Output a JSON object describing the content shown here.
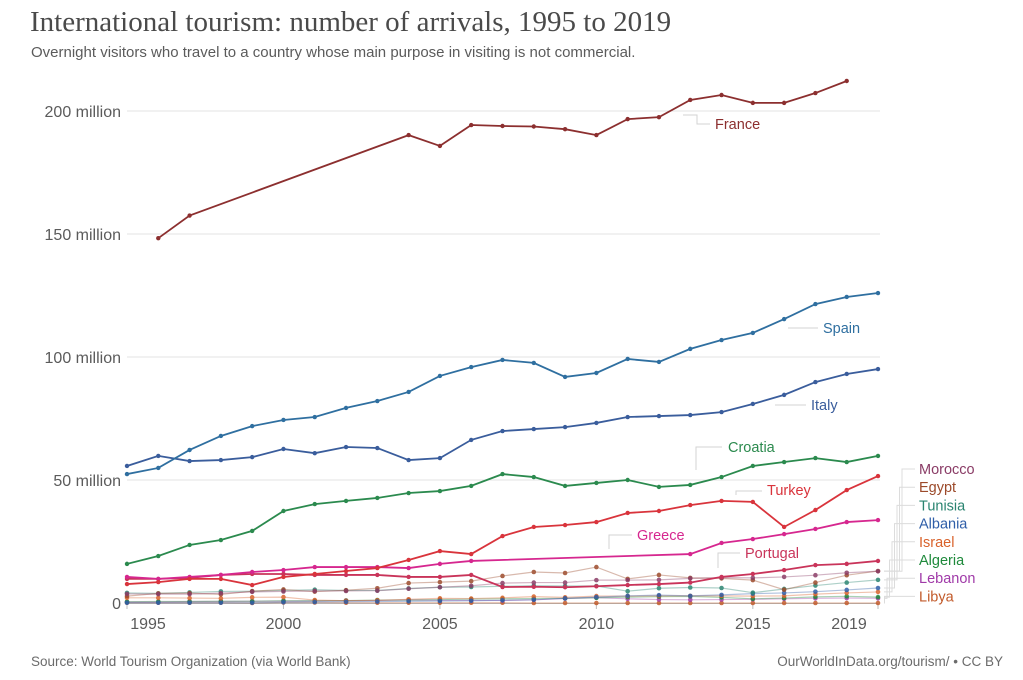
{
  "header": {
    "title": "International tourism: number of arrivals, 1995 to 2019",
    "subtitle": "Overnight visitors who travel to a country whose main purpose in visiting is not commercial."
  },
  "footer": {
    "source": "Source: World Tourism Organization (via World Bank)",
    "credit_link": "OurWorldInData.org/tourism/",
    "credit_separator": " • ",
    "license": "CC BY"
  },
  "chart_data": {
    "type": "line",
    "title": "International tourism: number of arrivals, 1995 to 2019",
    "subtitle": "Overnight visitors who travel to a country whose main purpose in visiting is not commercial.",
    "xlabel": "",
    "ylabel": "",
    "unit": "million arrivals",
    "xlim": [
      1995,
      2019
    ],
    "ylim": [
      0,
      215
    ],
    "x_ticks": [
      1995,
      2000,
      2005,
      2010,
      2015,
      2019
    ],
    "x_tick_labels": [
      "1995",
      "2000",
      "2005",
      "2010",
      "2015",
      "2019"
    ],
    "y_ticks": [
      0,
      50,
      100,
      150,
      200
    ],
    "y_tick_labels": [
      "0",
      "50 million",
      "100 million",
      "150 million",
      "200 million"
    ],
    "grid": "horizontal",
    "legend": "inline-labels-right",
    "x": [
      1995,
      1996,
      1997,
      1998,
      1999,
      2000,
      2001,
      2002,
      2003,
      2004,
      2005,
      2006,
      2007,
      2008,
      2009,
      2010,
      2011,
      2012,
      2013,
      2014,
      2015,
      2016,
      2017,
      2018,
      2019
    ],
    "series": [
      {
        "name": "France",
        "color": "#8c2f2f",
        "label": "France",
        "values": [
          null,
          148.3,
          157.5,
          null,
          null,
          null,
          null,
          null,
          null,
          190.2,
          185.8,
          194.3,
          193.9,
          193.7,
          192.6,
          190.2,
          196.7,
          197.5,
          204.5,
          206.5,
          203.3,
          203.3,
          207.3,
          212.2,
          null
        ]
      },
      {
        "name": "Spain",
        "color": "#2f6fa0",
        "label": "Spain",
        "values": [
          52.4,
          54.9,
          62.2,
          67.9,
          71.9,
          74.4,
          75.6,
          79.3,
          82.1,
          85.8,
          92.3,
          95.9,
          98.8,
          97.6,
          91.9,
          93.5,
          99.2,
          98.0,
          103.3,
          106.9,
          109.8,
          115.4,
          121.5,
          124.4,
          126.0
        ]
      },
      {
        "name": "Italy",
        "color": "#3a5d9c",
        "label": "Italy",
        "values": [
          55.7,
          59.8,
          57.7,
          58.1,
          59.3,
          62.6,
          60.9,
          63.4,
          63.0,
          58.1,
          58.9,
          66.3,
          69.9,
          70.7,
          71.5,
          73.2,
          75.6,
          76.0,
          76.4,
          77.6,
          80.9,
          84.6,
          89.8,
          93.1,
          95.1
        ]
      },
      {
        "name": "Croatia",
        "color": "#2b8a4e",
        "label": "Croatia",
        "values": [
          15.9,
          19.1,
          23.6,
          25.6,
          29.3,
          37.4,
          40.2,
          41.5,
          42.7,
          44.7,
          45.5,
          47.6,
          52.4,
          51.2,
          47.6,
          48.8,
          50.0,
          47.2,
          48.0,
          51.2,
          55.7,
          57.3,
          58.9,
          57.3,
          59.8
        ]
      },
      {
        "name": "Turkey",
        "color": "#d9343c",
        "label": "Turkey",
        "values": [
          7.7,
          8.5,
          9.8,
          9.8,
          7.3,
          10.6,
          11.8,
          13.0,
          14.2,
          17.5,
          21.1,
          19.9,
          27.2,
          30.9,
          31.7,
          32.9,
          36.6,
          37.4,
          39.8,
          41.5,
          41.1,
          30.9,
          37.8,
          45.9,
          51.6
        ]
      },
      {
        "name": "Greece",
        "color": "#d6278f",
        "label": "Greece",
        "values": [
          10.6,
          9.8,
          10.6,
          11.4,
          12.6,
          13.4,
          14.6,
          14.6,
          14.6,
          14.2,
          15.9,
          17.1,
          null,
          null,
          null,
          null,
          null,
          null,
          19.9,
          24.4,
          26.0,
          28.0,
          30.1,
          32.9,
          33.7
        ]
      },
      {
        "name": "Portugal",
        "color": "#c9345a",
        "label": "Portugal",
        "values": [
          9.8,
          9.8,
          10.2,
          11.4,
          11.8,
          11.8,
          11.4,
          11.4,
          11.4,
          10.6,
          10.6,
          11.4,
          6.5,
          6.6,
          6.4,
          6.8,
          7.3,
          7.7,
          8.3,
          10.6,
          11.8,
          13.4,
          15.4,
          15.9,
          17.1
        ]
      },
      {
        "name": "Morocco",
        "color": "#8a3c66",
        "label": "Morocco",
        "values": [
          3.7,
          3.6,
          3.6,
          4.0,
          4.5,
          4.7,
          4.9,
          4.9,
          5.0,
          5.8,
          6.4,
          7.0,
          8.1,
          8.3,
          8.3,
          9.3,
          9.3,
          9.4,
          10.0,
          10.3,
          10.2,
          10.6,
          11.3,
          12.3,
          12.9
        ]
      },
      {
        "name": "Egypt",
        "color": "#9c4a2a",
        "label": "Egypt",
        "values": [
          2.8,
          3.9,
          4.0,
          3.5,
          4.8,
          5.5,
          4.6,
          5.2,
          6.0,
          8.1,
          8.5,
          8.9,
          11.0,
          12.6,
          12.2,
          14.6,
          9.8,
          11.4,
          10.2,
          10.0,
          9.3,
          5.4,
          8.3,
          11.3,
          13.0
        ]
      },
      {
        "name": "Tunisia",
        "color": "#2a8470",
        "label": "Tunisia",
        "values": [
          4.1,
          3.9,
          4.3,
          4.7,
          4.8,
          5.1,
          5.4,
          5.1,
          5.1,
          5.9,
          6.4,
          6.5,
          6.8,
          7.0,
          6.9,
          6.9,
          4.8,
          6.0,
          6.3,
          6.1,
          4.2,
          5.7,
          7.1,
          8.3,
          9.4
        ]
      },
      {
        "name": "Albania",
        "color": "#2f5ea8",
        "label": "Albania",
        "values": [
          0.1,
          0.1,
          0.1,
          0.1,
          0.1,
          0.3,
          0.4,
          0.5,
          0.6,
          0.7,
          0.8,
          0.9,
          1.1,
          1.3,
          1.9,
          2.4,
          2.9,
          3.2,
          2.9,
          3.3,
          3.8,
          4.1,
          4.6,
          5.3,
          6.1
        ]
      },
      {
        "name": "Israel",
        "color": "#d9622b",
        "label": "Israel",
        "values": [
          2.1,
          2.1,
          2.0,
          1.9,
          2.3,
          2.4,
          1.2,
          0.9,
          1.1,
          1.5,
          1.9,
          1.8,
          2.1,
          2.6,
          2.3,
          2.8,
          2.8,
          2.9,
          2.9,
          2.9,
          2.8,
          2.9,
          3.6,
          4.1,
          4.5
        ]
      },
      {
        "name": "Algeria",
        "color": "#1f8a3c",
        "label": "Algeria",
        "values": [
          0.5,
          0.6,
          0.6,
          0.7,
          0.7,
          0.9,
          0.9,
          1.0,
          1.2,
          1.2,
          1.4,
          1.6,
          1.7,
          1.8,
          1.9,
          2.1,
          2.4,
          2.6,
          2.7,
          2.3,
          1.7,
          2.0,
          2.5,
          2.7,
          2.4
        ]
      },
      {
        "name": "Lebanon",
        "color": "#a03aa8",
        "label": "Lebanon",
        "values": [
          0.4,
          0.4,
          0.6,
          0.6,
          0.7,
          0.7,
          0.8,
          1.0,
          1.0,
          1.3,
          1.1,
          1.1,
          1.0,
          1.3,
          1.8,
          2.2,
          1.7,
          1.4,
          1.3,
          1.4,
          1.5,
          1.7,
          1.9,
          2.0,
          1.9
        ]
      },
      {
        "name": "Libya",
        "color": "#c25a2a",
        "label": "Libya",
        "values": [
          0.1,
          0.1,
          0.1,
          0.1,
          0.0,
          0.2,
          0.2,
          0.1,
          0.1,
          0.1,
          0.1,
          0.1,
          0.1,
          0.0,
          0.0,
          0.0,
          0.0,
          0.0,
          0.0,
          0.0,
          0.0,
          0.0,
          0.0,
          0.0,
          0.0
        ]
      }
    ],
    "inline_labels": [
      "France",
      "Spain",
      "Italy",
      "Croatia",
      "Turkey",
      "Greece",
      "Portugal"
    ],
    "right_legend": [
      "Morocco",
      "Egypt",
      "Tunisia",
      "Albania",
      "Israel",
      "Algeria",
      "Lebanon",
      "Libya"
    ]
  }
}
